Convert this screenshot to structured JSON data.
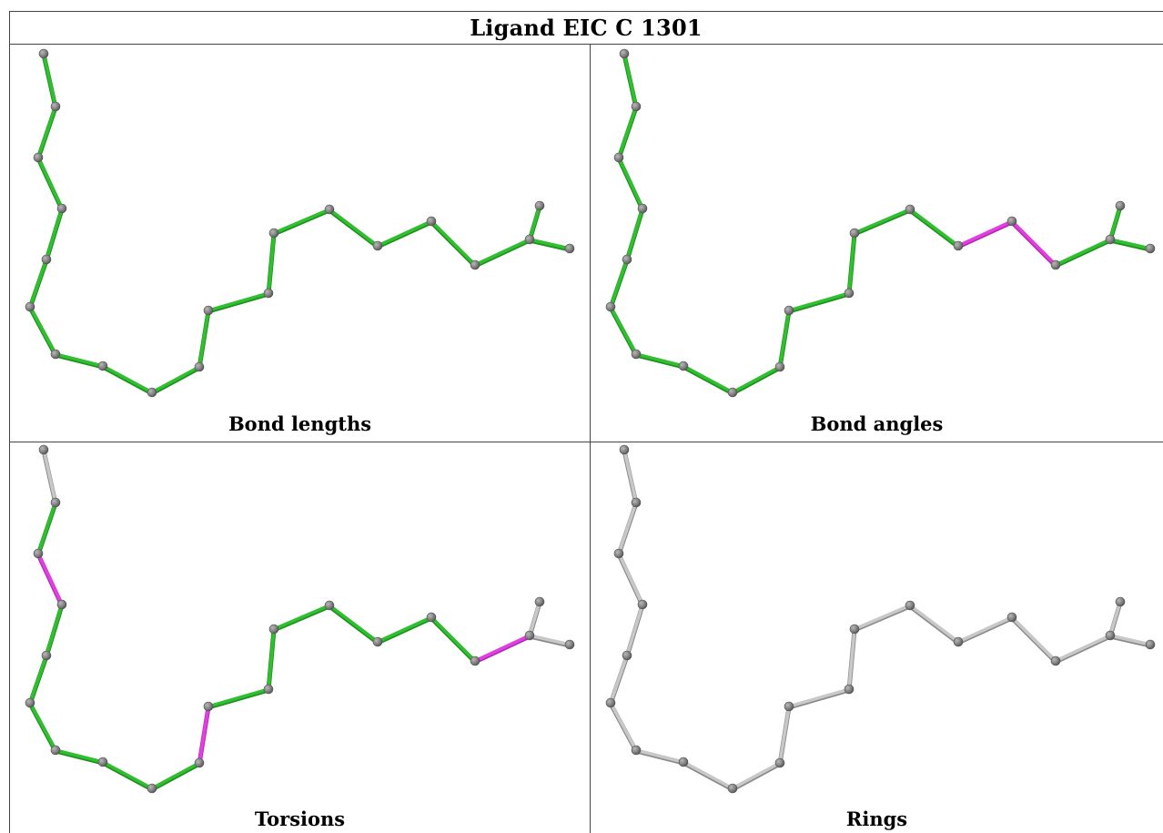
{
  "title": "Ligand EIC C 1301",
  "colors": {
    "ok_bond": "#2fbf2f",
    "ok_bond_dark": "#1f8f1f",
    "outlier_bond": "#e23ee2",
    "na_bond": "#c8c8c8",
    "na_bond_dark": "#8a8a8a",
    "atom": "#808080",
    "atom_dark": "#505050",
    "atom_light": "#b8b8b8"
  },
  "panels": [
    {
      "id": "bond-lengths",
      "caption": "Bond lengths",
      "highlight": []
    },
    {
      "id": "bond-angles",
      "caption": "Bond angles",
      "highlight": [
        14,
        15
      ]
    },
    {
      "id": "torsions",
      "caption": "Torsions",
      "highlight": [
        2,
        9,
        16,
        20
      ]
    },
    {
      "id": "rings",
      "caption": "Rings",
      "highlight": [],
      "all_gray": true
    }
  ]
}
